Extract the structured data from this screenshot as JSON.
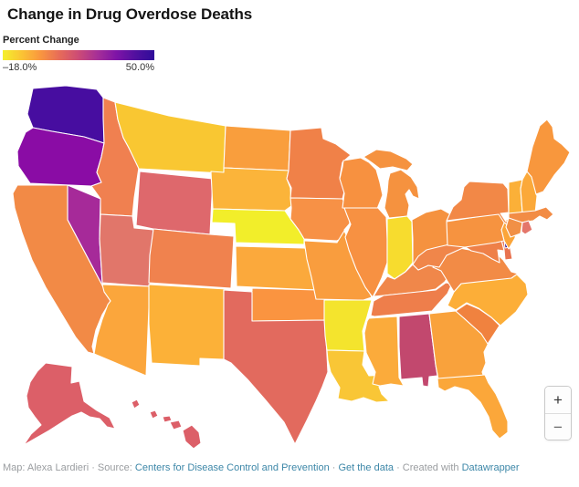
{
  "header": {
    "title": "Change in Drug Overdose Deaths"
  },
  "legend": {
    "label": "Percent Change",
    "min_label": "–18.0%",
    "max_label": "50.0%",
    "gradient_stops": [
      "#f4ef2c",
      "#fbc434",
      "#f9963f",
      "#e76b59",
      "#cc4b76",
      "#a62f97",
      "#7e14a7",
      "#51109f",
      "#2f0c9a"
    ]
  },
  "chart_data": {
    "type": "choropleth-map",
    "title": "Change in Drug Overdose Deaths",
    "legend_label": "Percent Change",
    "scale_min": "-18.0%",
    "scale_max": "50.0%",
    "note": "state values encoded by color only"
  },
  "map": {
    "border_color": "#ffffff",
    "states": [
      {
        "code": "WA",
        "name": "Washington",
        "color": "#470da0"
      },
      {
        "code": "OR",
        "name": "Oregon",
        "color": "#8a0ca5"
      },
      {
        "code": "CA",
        "name": "California",
        "color": "#f28a46"
      },
      {
        "code": "NV",
        "name": "Nevada",
        "color": "#a62a99"
      },
      {
        "code": "ID",
        "name": "Idaho",
        "color": "#f08050"
      },
      {
        "code": "MT",
        "name": "Montana",
        "color": "#f9c732"
      },
      {
        "code": "WY",
        "name": "Wyoming",
        "color": "#de686c"
      },
      {
        "code": "UT",
        "name": "Utah",
        "color": "#e1766a"
      },
      {
        "code": "CO",
        "name": "Colorado",
        "color": "#f0824e"
      },
      {
        "code": "AZ",
        "name": "Arizona",
        "color": "#fba63c"
      },
      {
        "code": "NM",
        "name": "New Mexico",
        "color": "#fcb138"
      },
      {
        "code": "ND",
        "name": "North Dakota",
        "color": "#f99e3d"
      },
      {
        "code": "SD",
        "name": "South Dakota",
        "color": "#fbb43a"
      },
      {
        "code": "NE",
        "name": "Nebraska",
        "color": "#f2ee2a"
      },
      {
        "code": "KS",
        "name": "Kansas",
        "color": "#fba93c"
      },
      {
        "code": "OK",
        "name": "Oklahoma",
        "color": "#fa9440"
      },
      {
        "code": "TX",
        "name": "Texas",
        "color": "#e26a5e"
      },
      {
        "code": "MN",
        "name": "Minnesota",
        "color": "#f08148"
      },
      {
        "code": "IA",
        "name": "Iowa",
        "color": "#f79146"
      },
      {
        "code": "MO",
        "name": "Missouri",
        "color": "#f99d3e"
      },
      {
        "code": "AR",
        "name": "Arkansas",
        "color": "#f4e42d"
      },
      {
        "code": "LA",
        "name": "Louisiana",
        "color": "#f9c636"
      },
      {
        "code": "MS",
        "name": "Mississippi",
        "color": "#fbab3b"
      },
      {
        "code": "AL",
        "name": "Alabama",
        "color": "#c2486e"
      },
      {
        "code": "TN",
        "name": "Tennessee",
        "color": "#ee7e4b"
      },
      {
        "code": "KY",
        "name": "Kentucky",
        "color": "#f0874a"
      },
      {
        "code": "IL",
        "name": "Illinois",
        "color": "#f79142"
      },
      {
        "code": "IN",
        "name": "Indiana",
        "color": "#f7dc2e"
      },
      {
        "code": "OH",
        "name": "Ohio",
        "color": "#f5923f"
      },
      {
        "code": "MI",
        "name": "Michigan",
        "color": "#f5923f"
      },
      {
        "code": "WI",
        "name": "Wisconsin",
        "color": "#f79140"
      },
      {
        "code": "GA",
        "name": "Georgia",
        "color": "#f9a23c"
      },
      {
        "code": "SC",
        "name": "South Carolina",
        "color": "#f0823f"
      },
      {
        "code": "NC",
        "name": "North Carolina",
        "color": "#fcae38"
      },
      {
        "code": "FL",
        "name": "Florida",
        "color": "#fba73a"
      },
      {
        "code": "VA",
        "name": "Virginia",
        "color": "#f28b46"
      },
      {
        "code": "WV",
        "name": "West Virginia",
        "color": "#f0864a"
      },
      {
        "code": "MD",
        "name": "Maryland",
        "color": "#ee8048"
      },
      {
        "code": "DE",
        "name": "Delaware",
        "color": "#e8724e"
      },
      {
        "code": "DC",
        "name": "District of Columbia",
        "color": "#2a0a90"
      },
      {
        "code": "NJ",
        "name": "New Jersey",
        "color": "#fba53a"
      },
      {
        "code": "PA",
        "name": "Pennsylvania",
        "color": "#f69340"
      },
      {
        "code": "NY",
        "name": "New York",
        "color": "#f28847"
      },
      {
        "code": "CT",
        "name": "Connecticut",
        "color": "#f19046"
      },
      {
        "code": "RI",
        "name": "Rhode Island",
        "color": "#e4766a"
      },
      {
        "code": "MA",
        "name": "Massachusetts",
        "color": "#f28c45"
      },
      {
        "code": "VT",
        "name": "Vermont",
        "color": "#fbb038"
      },
      {
        "code": "NH",
        "name": "New Hampshire",
        "color": "#fba93a"
      },
      {
        "code": "ME",
        "name": "Maine",
        "color": "#f8973d"
      },
      {
        "code": "AK",
        "name": "Alaska",
        "color": "#dc5f68"
      },
      {
        "code": "HI",
        "name": "Hawaii",
        "color": "#dc5f68"
      }
    ]
  },
  "zoom_controls": {
    "zoom_in_label": "+",
    "zoom_out_label": "−"
  },
  "footer": {
    "segments": [
      {
        "text": "Map: Alexa Lardieri · Source: ",
        "link": false
      },
      {
        "text": "Centers for Disease Control and Prevention",
        "link": true
      },
      {
        "text": " · ",
        "link": false
      },
      {
        "text": "Get the data",
        "link": true
      },
      {
        "text": " · Created with ",
        "link": false
      },
      {
        "text": "Datawrapper",
        "link": true
      }
    ]
  }
}
